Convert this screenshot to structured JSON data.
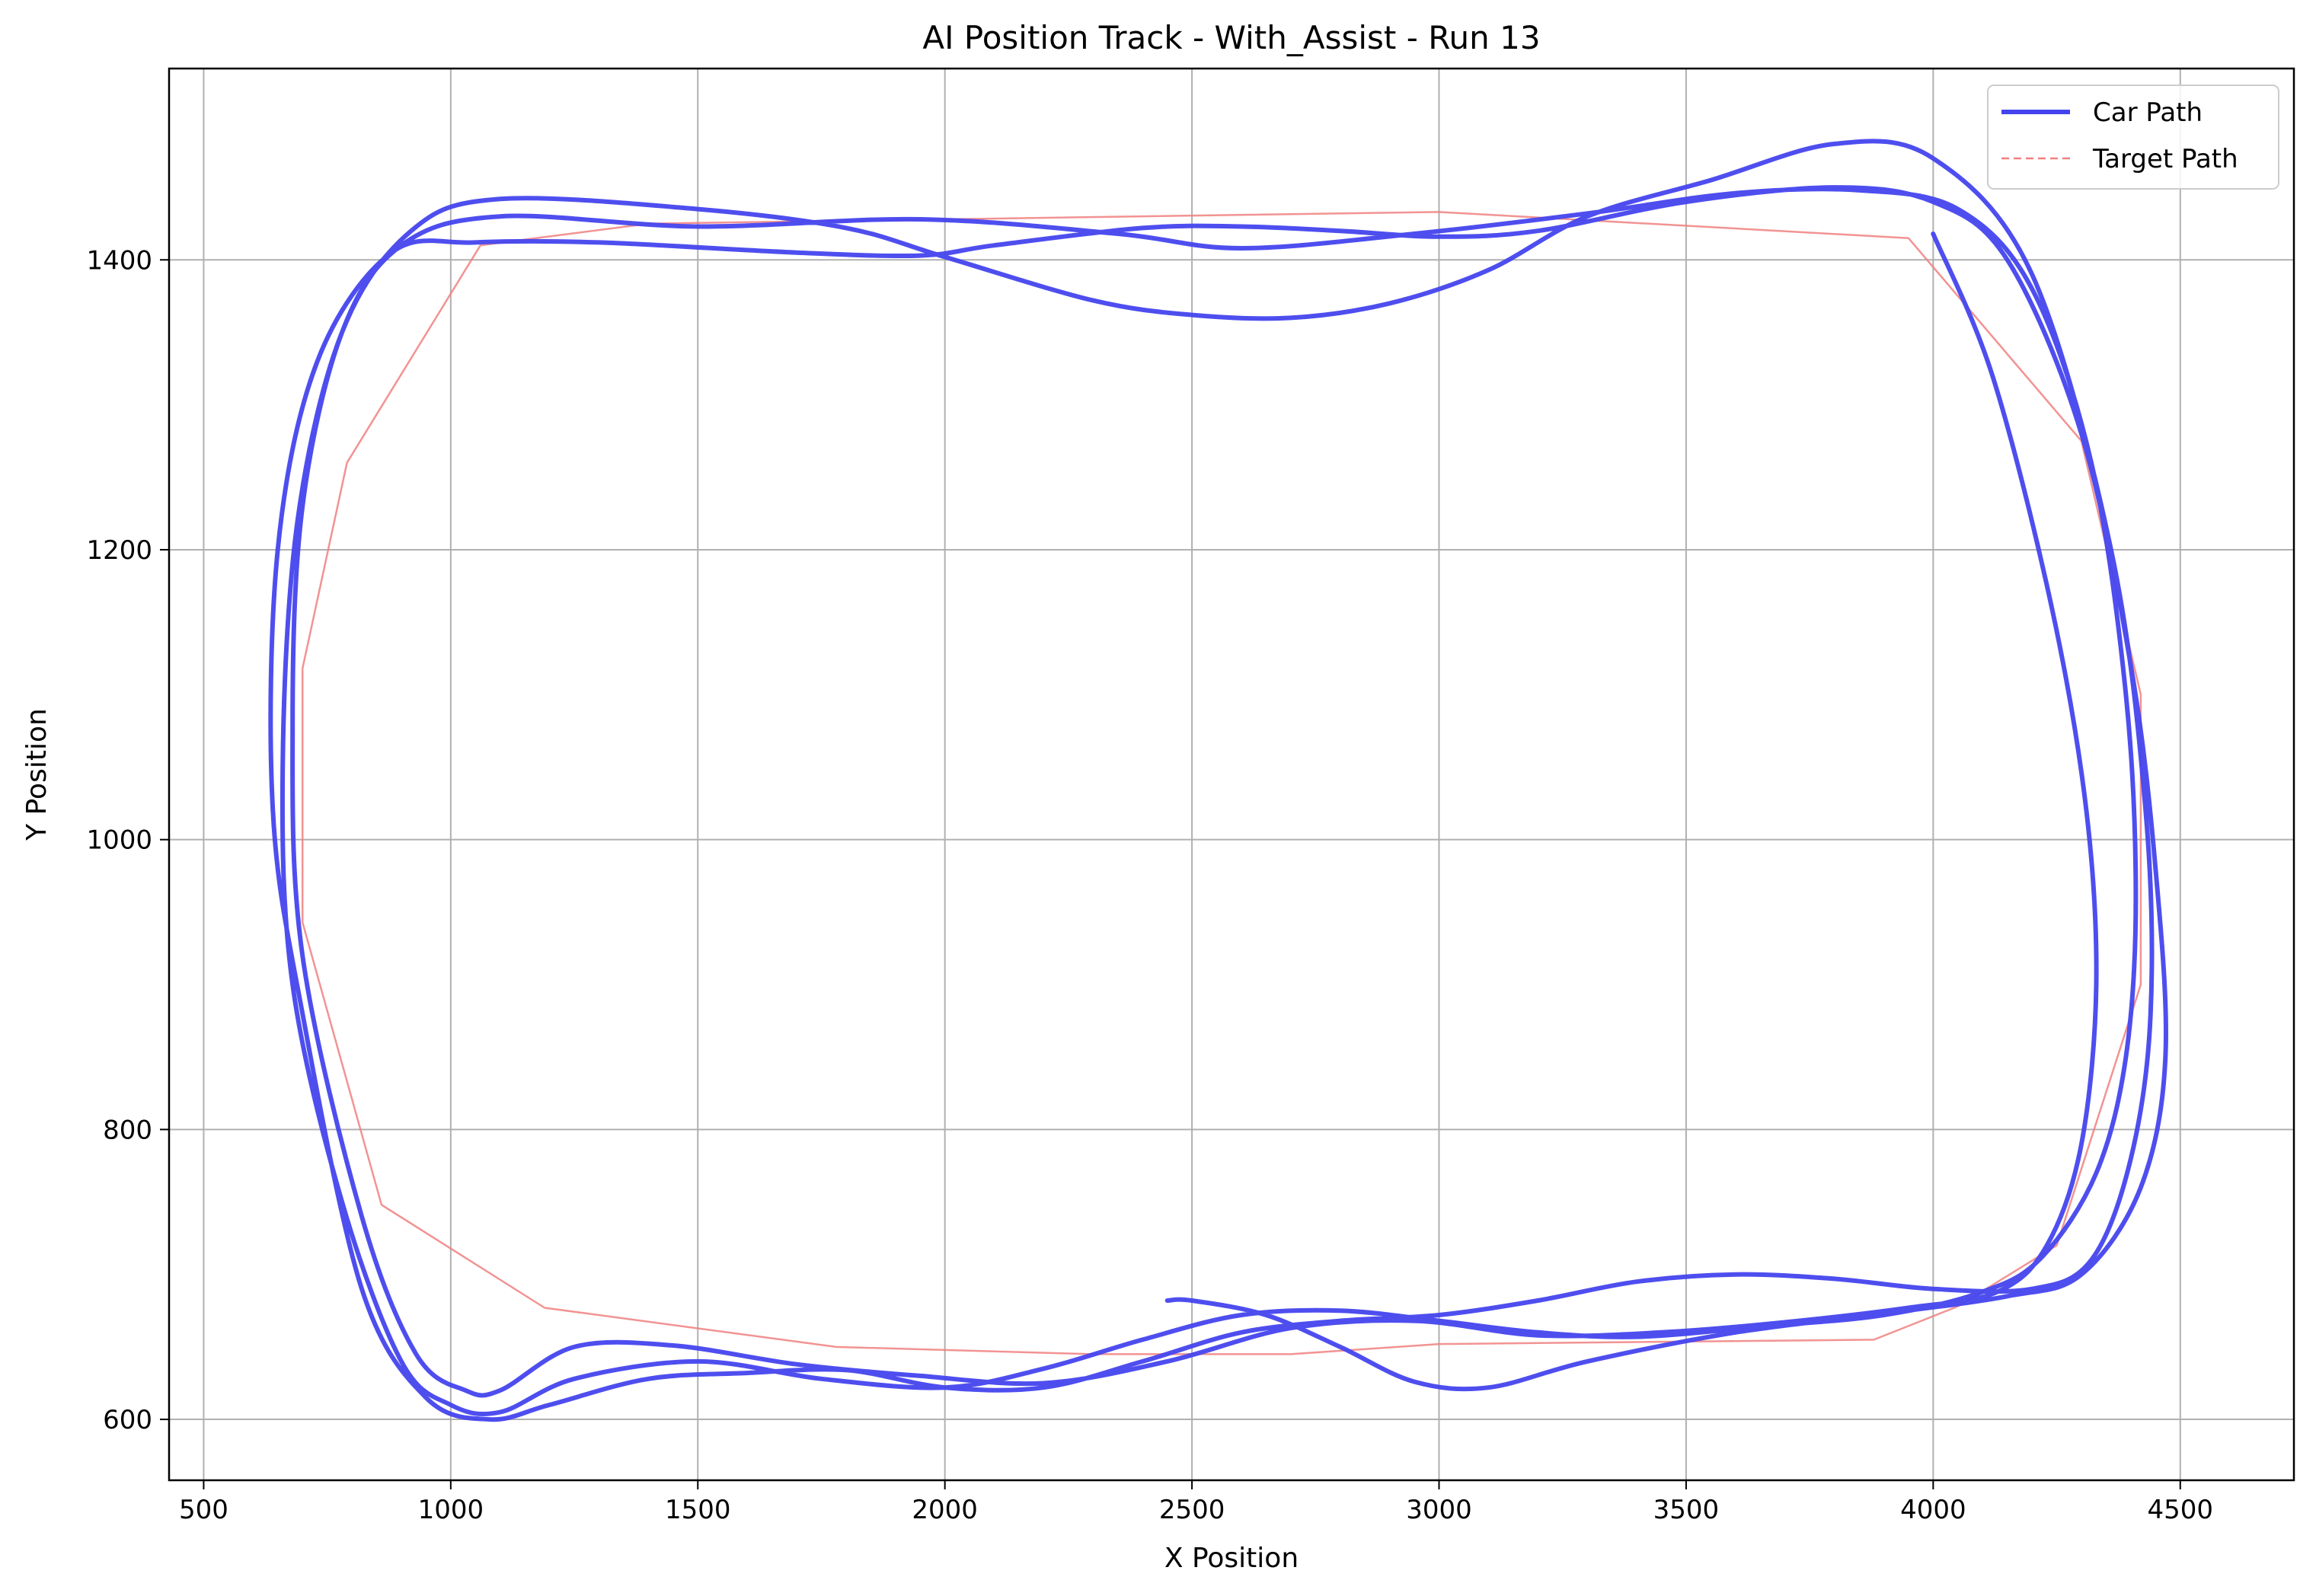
{
  "chart_data": {
    "type": "line",
    "title": "AI Position Track - With_Assist - Run 13",
    "xlabel": "X Position",
    "ylabel": "Y Position",
    "xlim": [
      430,
      4730
    ],
    "ylim": [
      558,
      1532
    ],
    "xticks": [
      500,
      1000,
      1500,
      2000,
      2500,
      3000,
      3500,
      4000,
      4500
    ],
    "yticks": [
      600,
      800,
      1000,
      1200,
      1400
    ],
    "grid": true,
    "legend_position": "top-right",
    "series": [
      {
        "name": "Car Path",
        "color": "#4444ee",
        "style": "solid",
        "points": [
          [
            4000,
            1418
          ],
          [
            4120,
            1320
          ],
          [
            4240,
            1160
          ],
          [
            4310,
            1020
          ],
          [
            4330,
            900
          ],
          [
            4300,
            790
          ],
          [
            4230,
            720
          ],
          [
            4130,
            688
          ],
          [
            3950,
            677
          ],
          [
            3700,
            667
          ],
          [
            3450,
            660
          ],
          [
            3200,
            658
          ],
          [
            2950,
            668
          ],
          [
            2700,
            663
          ],
          [
            2450,
            640
          ],
          [
            2200,
            625
          ],
          [
            1950,
            630
          ],
          [
            1700,
            638
          ],
          [
            1450,
            651
          ],
          [
            1250,
            650
          ],
          [
            1100,
            620
          ],
          [
            1030,
            620
          ],
          [
            930,
            645
          ],
          [
            820,
            740
          ],
          [
            700,
            920
          ],
          [
            680,
            1080
          ],
          [
            700,
            1230
          ],
          [
            780,
            1350
          ],
          [
            900,
            1410
          ],
          [
            1100,
            1430
          ],
          [
            1500,
            1423
          ],
          [
            1950,
            1428
          ],
          [
            2350,
            1418
          ],
          [
            2600,
            1408
          ],
          [
            2950,
            1418
          ],
          [
            3300,
            1432
          ],
          [
            3600,
            1446
          ],
          [
            3850,
            1448
          ],
          [
            4050,
            1435
          ],
          [
            4200,
            1380
          ],
          [
            4320,
            1260
          ],
          [
            4390,
            1100
          ],
          [
            4410,
            960
          ],
          [
            4390,
            850
          ],
          [
            4330,
            770
          ],
          [
            4220,
            712
          ],
          [
            4100,
            688
          ],
          [
            3900,
            672
          ],
          [
            3650,
            664
          ],
          [
            3400,
            657
          ],
          [
            3200,
            660
          ],
          [
            3000,
            668
          ],
          [
            2800,
            675
          ],
          [
            2600,
            672
          ],
          [
            2400,
            655
          ],
          [
            2200,
            635
          ],
          [
            2000,
            622
          ],
          [
            1750,
            628
          ],
          [
            1500,
            640
          ],
          [
            1250,
            628
          ],
          [
            1100,
            605
          ],
          [
            1000,
            610
          ],
          [
            900,
            640
          ],
          [
            780,
            750
          ],
          [
            680,
            900
          ],
          [
            660,
            1050
          ],
          [
            690,
            1220
          ],
          [
            780,
            1350
          ],
          [
            920,
            1420
          ],
          [
            1100,
            1442
          ],
          [
            1500,
            1435
          ],
          [
            1800,
            1422
          ],
          [
            2000,
            1402
          ],
          [
            2300,
            1372
          ],
          [
            2500,
            1362
          ],
          [
            2700,
            1360
          ],
          [
            2900,
            1370
          ],
          [
            3100,
            1393
          ],
          [
            3300,
            1430
          ],
          [
            3550,
            1455
          ],
          [
            3800,
            1480
          ],
          [
            4000,
            1470
          ],
          [
            4200,
            1390
          ],
          [
            4360,
            1200
          ],
          [
            4430,
            1020
          ],
          [
            4440,
            880
          ],
          [
            4400,
            780
          ],
          [
            4320,
            710
          ],
          [
            4200,
            690
          ],
          [
            4000,
            690
          ],
          [
            3800,
            697
          ],
          [
            3600,
            700
          ],
          [
            3400,
            695
          ],
          [
            3200,
            682
          ],
          [
            3000,
            672
          ],
          [
            2800,
            668
          ],
          [
            2600,
            660
          ],
          [
            2400,
            640
          ],
          [
            2200,
            622
          ],
          [
            2000,
            622
          ],
          [
            1800,
            634
          ],
          [
            1600,
            632
          ],
          [
            1400,
            628
          ],
          [
            1200,
            610
          ],
          [
            1080,
            600
          ],
          [
            950,
            615
          ],
          [
            820,
            690
          ],
          [
            700,
            880
          ],
          [
            640,
            1020
          ],
          [
            650,
            1200
          ],
          [
            730,
            1330
          ],
          [
            880,
            1405
          ],
          [
            1050,
            1412
          ],
          [
            1300,
            1412
          ],
          [
            1700,
            1405
          ],
          [
            1950,
            1403
          ],
          [
            2100,
            1410
          ],
          [
            2400,
            1422
          ],
          [
            2600,
            1423
          ],
          [
            2800,
            1420
          ],
          [
            3000,
            1416
          ],
          [
            3200,
            1420
          ],
          [
            3500,
            1440
          ],
          [
            3800,
            1450
          ],
          [
            4000,
            1440
          ],
          [
            4150,
            1400
          ],
          [
            4300,
            1280
          ],
          [
            4400,
            1120
          ],
          [
            4450,
            980
          ],
          [
            4470,
            850
          ],
          [
            4420,
            760
          ],
          [
            4300,
            700
          ],
          [
            4150,
            685
          ],
          [
            3900,
            673
          ],
          [
            3600,
            660
          ],
          [
            3300,
            640
          ],
          [
            3100,
            622
          ],
          [
            2950,
            626
          ],
          [
            2800,
            650
          ],
          [
            2650,
            672
          ],
          [
            2500,
            682
          ],
          [
            2450,
            682
          ]
        ]
      },
      {
        "name": "Target Path",
        "color": "#f08080",
        "style": "dashed",
        "points": [
          [
            1060,
            1410
          ],
          [
            1400,
            1425
          ],
          [
            2000,
            1428
          ],
          [
            3000,
            1433
          ],
          [
            3950,
            1415
          ],
          [
            4300,
            1275
          ],
          [
            4420,
            1100
          ],
          [
            4420,
            900
          ],
          [
            4250,
            720
          ],
          [
            4050,
            678
          ],
          [
            3880,
            655
          ],
          [
            3000,
            652
          ],
          [
            2700,
            645
          ],
          [
            2300,
            645
          ],
          [
            1780,
            650
          ],
          [
            1190,
            677
          ],
          [
            860,
            748
          ],
          [
            700,
            943
          ],
          [
            700,
            1118
          ],
          [
            790,
            1260
          ],
          [
            1060,
            1410
          ]
        ]
      }
    ]
  }
}
